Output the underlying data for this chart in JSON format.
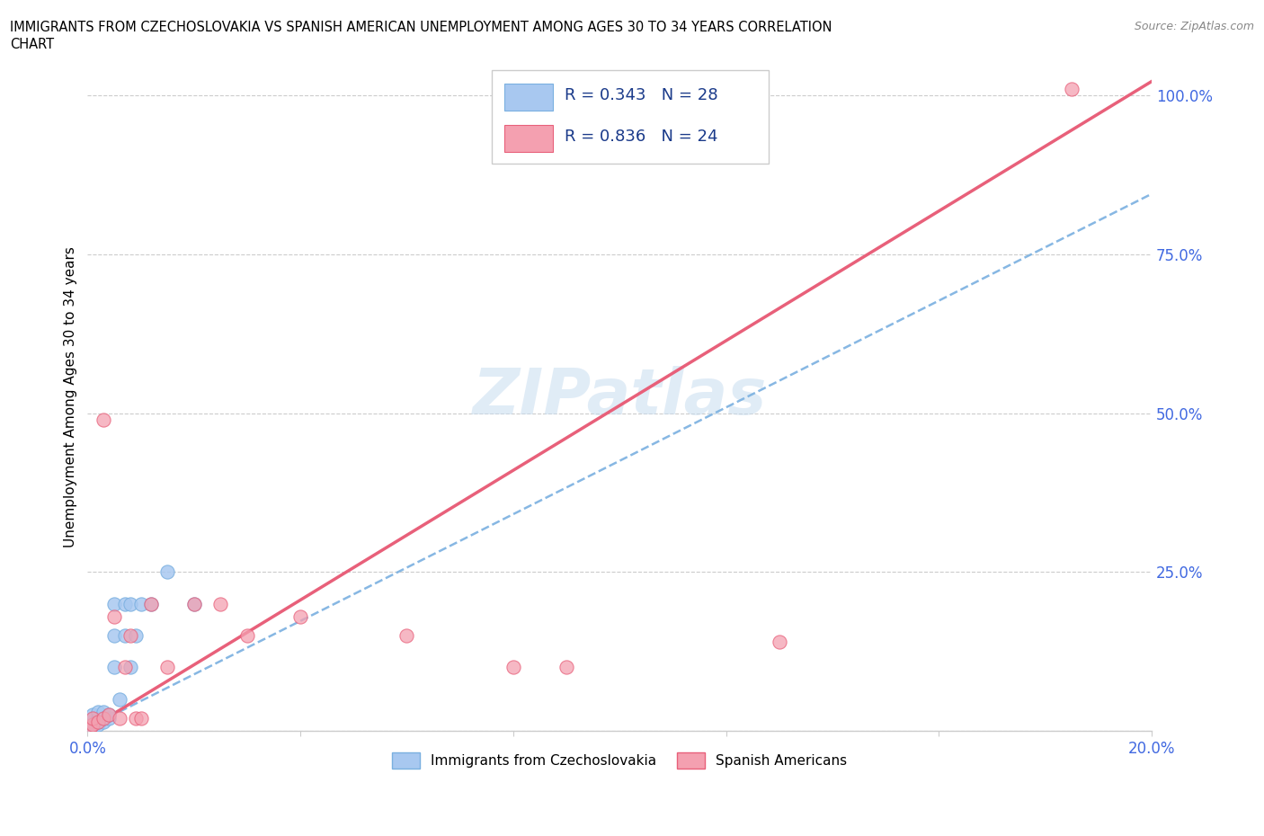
{
  "title_line1": "IMMIGRANTS FROM CZECHOSLOVAKIA VS SPANISH AMERICAN UNEMPLOYMENT AMONG AGES 30 TO 34 YEARS CORRELATION",
  "title_line2": "CHART",
  "source": "Source: ZipAtlas.com",
  "xlabel_label": "Immigrants from Czechoslovakia",
  "ylabel_label": "Unemployment Among Ages 30 to 34 years",
  "xlim": [
    0.0,
    0.2
  ],
  "ylim": [
    0.0,
    1.05
  ],
  "x_ticks": [
    0.0,
    0.04,
    0.08,
    0.12,
    0.16,
    0.2
  ],
  "x_tick_labels": [
    "0.0%",
    "",
    "",
    "",
    "",
    "20.0%"
  ],
  "y_ticks": [
    0.0,
    0.25,
    0.5,
    0.75,
    1.0
  ],
  "y_tick_labels": [
    "",
    "25.0%",
    "50.0%",
    "75.0%",
    "100.0%"
  ],
  "R_blue": 0.343,
  "N_blue": 28,
  "R_pink": 0.836,
  "N_pink": 24,
  "color_blue": "#a8c8f0",
  "color_pink": "#f4a0b0",
  "color_blue_line": "#7ab0e0",
  "color_pink_line": "#e8607a",
  "watermark": "ZIPatlas",
  "blue_slope": 4.2,
  "blue_intercept": 0.005,
  "pink_slope": 5.1,
  "pink_intercept": 0.002,
  "blue_scatter_x": [
    0.0005,
    0.001,
    0.001,
    0.001,
    0.001,
    0.001,
    0.002,
    0.002,
    0.002,
    0.002,
    0.003,
    0.003,
    0.003,
    0.004,
    0.004,
    0.005,
    0.005,
    0.005,
    0.006,
    0.007,
    0.007,
    0.008,
    0.008,
    0.009,
    0.01,
    0.012,
    0.015,
    0.02
  ],
  "blue_scatter_y": [
    0.005,
    0.005,
    0.01,
    0.015,
    0.02,
    0.025,
    0.01,
    0.015,
    0.02,
    0.03,
    0.015,
    0.02,
    0.03,
    0.02,
    0.025,
    0.1,
    0.15,
    0.2,
    0.05,
    0.15,
    0.2,
    0.1,
    0.2,
    0.15,
    0.2,
    0.2,
    0.25,
    0.2
  ],
  "pink_scatter_x": [
    0.0005,
    0.001,
    0.001,
    0.002,
    0.003,
    0.003,
    0.004,
    0.005,
    0.006,
    0.007,
    0.008,
    0.009,
    0.01,
    0.012,
    0.015,
    0.02,
    0.025,
    0.03,
    0.04,
    0.06,
    0.08,
    0.09,
    0.13,
    0.185
  ],
  "pink_scatter_y": [
    0.005,
    0.01,
    0.02,
    0.015,
    0.02,
    0.49,
    0.025,
    0.18,
    0.02,
    0.1,
    0.15,
    0.02,
    0.02,
    0.2,
    0.1,
    0.2,
    0.2,
    0.15,
    0.18,
    0.15,
    0.1,
    0.1,
    0.14,
    1.01
  ]
}
